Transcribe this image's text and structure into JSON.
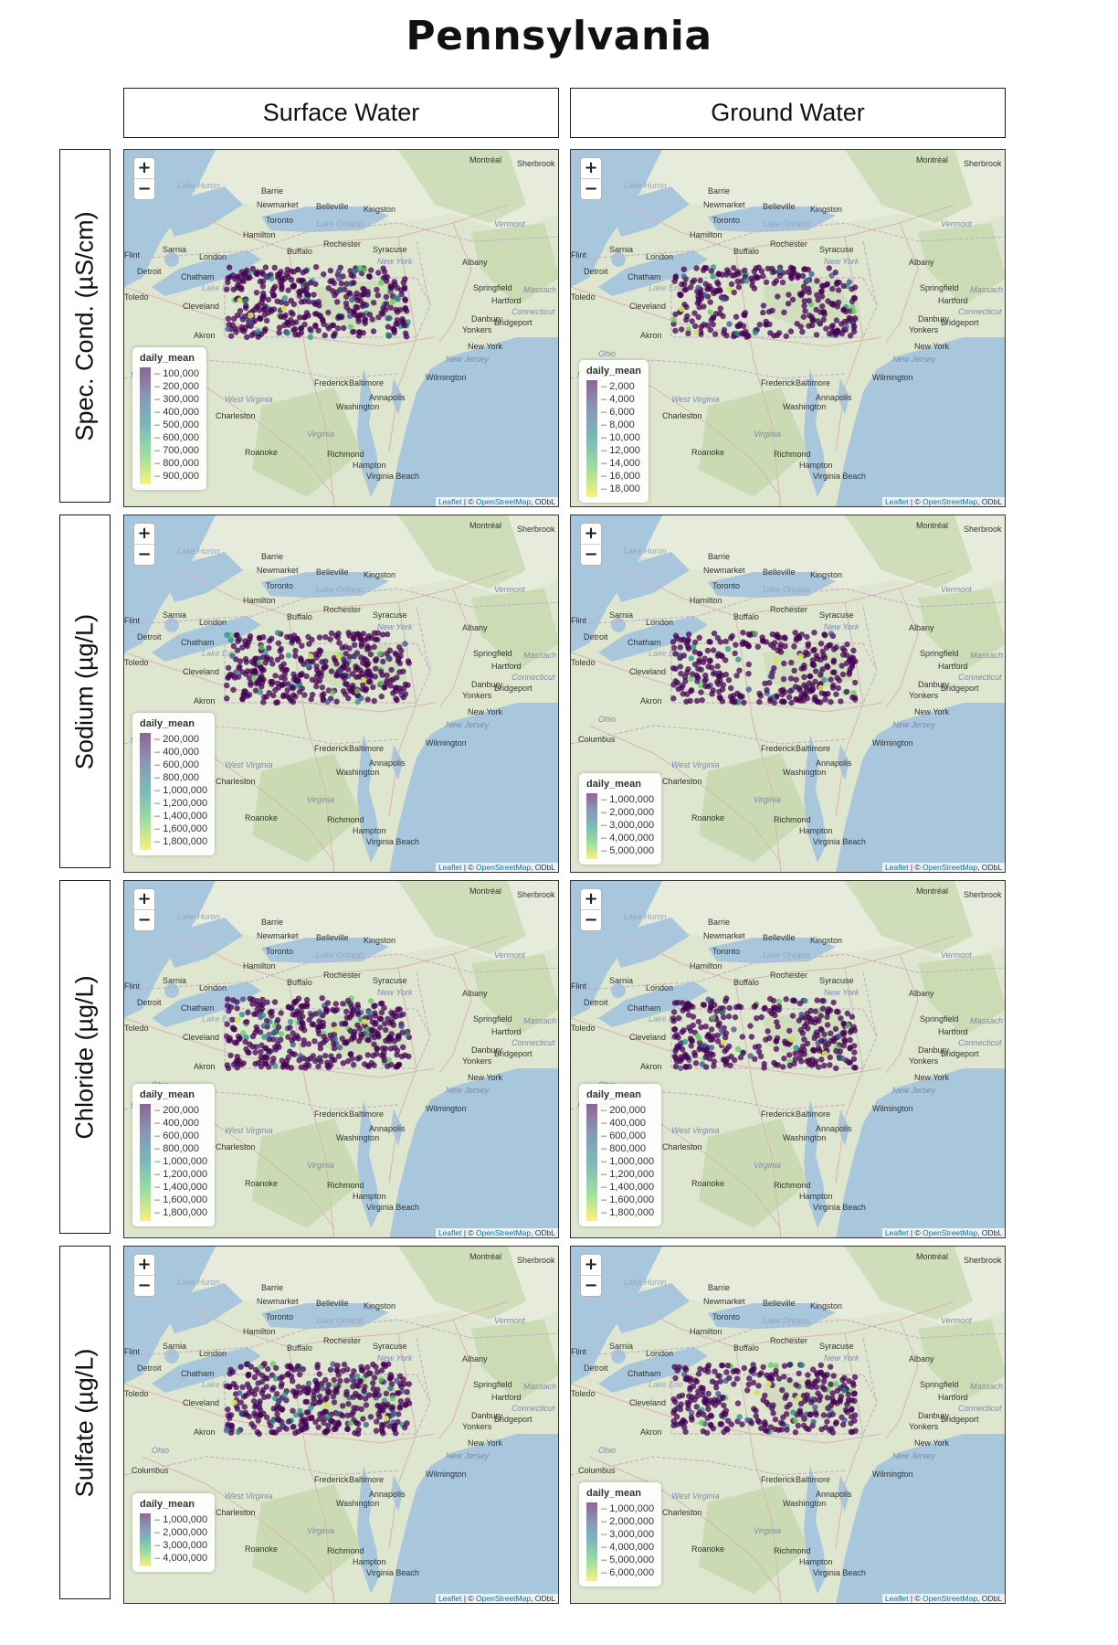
{
  "title": "Pennsylvania",
  "columns": [
    "Surface Water",
    "Ground Water"
  ],
  "rows": [
    {
      "label": "Spec. Cond. (µS/cm)",
      "maps": [
        {
          "legend_title": "daily_mean",
          "ticks": [
            "100,000",
            "200,000",
            "300,000",
            "400,000",
            "500,000",
            "600,000",
            "700,000",
            "800,000",
            "900,000"
          ]
        },
        {
          "legend_title": "daily_mean",
          "ticks": [
            "2,000",
            "4,000",
            "6,000",
            "8,000",
            "10,000",
            "12,000",
            "14,000",
            "16,000",
            "18,000"
          ]
        }
      ]
    },
    {
      "label": "Sodium (µg/L)",
      "maps": [
        {
          "legend_title": "daily_mean",
          "ticks": [
            "200,000",
            "400,000",
            "600,000",
            "800,000",
            "1,000,000",
            "1,200,000",
            "1,400,000",
            "1,600,000",
            "1,800,000"
          ]
        },
        {
          "legend_title": "daily_mean",
          "ticks": [
            "1,000,000",
            "2,000,000",
            "3,000,000",
            "4,000,000",
            "5,000,000"
          ]
        }
      ]
    },
    {
      "label": "Chloride (µg/L)",
      "maps": [
        {
          "legend_title": "daily_mean",
          "ticks": [
            "200,000",
            "400,000",
            "600,000",
            "800,000",
            "1,000,000",
            "1,200,000",
            "1,400,000",
            "1,600,000",
            "1,800,000"
          ]
        },
        {
          "legend_title": "daily_mean",
          "ticks": [
            "200,000",
            "400,000",
            "600,000",
            "800,000",
            "1,000,000",
            "1,200,000",
            "1,400,000",
            "1,600,000",
            "1,800,000"
          ]
        }
      ]
    },
    {
      "label": "Sulfate (µg/L)",
      "maps": [
        {
          "legend_title": "daily_mean",
          "ticks": [
            "1,000,000",
            "2,000,000",
            "3,000,000",
            "4,000,000"
          ]
        },
        {
          "legend_title": "daily_mean",
          "ticks": [
            "1,000,000",
            "2,000,000",
            "3,000,000",
            "4,000,000",
            "5,000,000",
            "6,000,000"
          ]
        }
      ]
    }
  ],
  "zoom": {
    "in": "+",
    "out": "−"
  },
  "attribution": {
    "leaflet": "Leaflet",
    "sep": " | © ",
    "osm": "OpenStreetMap",
    "tail": ", ODbL"
  },
  "cities": {
    "Montreal": "Montréal",
    "Sherbrooke": "Sherbrook",
    "LakeHuron": "Lake Huron",
    "Barrie": "Barrie",
    "Newmarket": "Newmarket",
    "Belleville": "Belleville",
    "Kingston": "Kingston",
    "Toronto": "Toronto",
    "LakeOntario": "Lake Ontario",
    "Vermont": "Vermont",
    "Hamilton": "Hamilton",
    "Rochester": "Rochester",
    "Sarnia": "Sarnia",
    "Syracuse": "Syracuse",
    "Buffalo": "Buffalo",
    "Flint": "Flint",
    "London": "London",
    "NewYorkState": "New York",
    "Albany": "Albany",
    "Detroit": "Detroit",
    "Chatham": "Chatham",
    "LakeErie": "Lake Erie",
    "Springfield": "Springfield",
    "Massachusetts": "Massach",
    "Toledo": "Toledo",
    "Cleveland": "Cleveland",
    "Hartford": "Hartford",
    "Erie": "Erie",
    "Connecticut": "Connecticut",
    "Danbury": "Danbury",
    "Bridgeport": "Bridgeport",
    "Yonkers": "Yonkers",
    "Akron": "Akron",
    "NewYork": "New York",
    "NewJersey": "New Jersey",
    "Ohio": "Ohio",
    "Columbus": "Columbus",
    "Frederick": "Frederick",
    "Baltimore": "Baltimore",
    "Wilmington": "Wilmington",
    "WestVirginia": "West Virginia",
    "Annapolis": "Annapolis",
    "Washington": "Washington",
    "Charleston": "Charleston",
    "Virginia": "Virginia",
    "Roanoke": "Roanoke",
    "Richmond": "Richmond",
    "Hampton": "Hampton",
    "VirginiaBeach": "Virginia Beach"
  }
}
